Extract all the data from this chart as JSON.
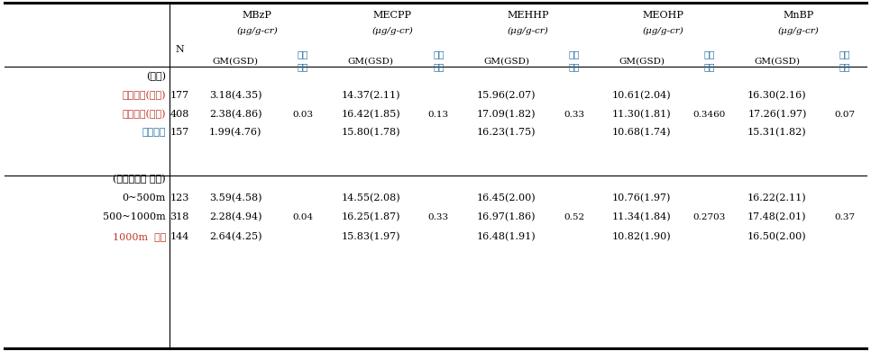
{
  "col_headers_line1": [
    "MBzP",
    "MECPP",
    "MEHHP",
    "MEOHP",
    "MnBP"
  ],
  "col_headers_line2": [
    "(μg/g-cr)",
    "(μg/g-cr)",
    "(μg/g-cr)",
    "(μg/g-cr)",
    "(μg/g-cr)"
  ],
  "row_groups": [
    {
      "group_label": "(지역)",
      "rows": [
        {
          "label": "노출지역(시흥)",
          "label_color": "#c0392b",
          "N": "177",
          "gm": [
            "3.18(4.35)",
            "14.37(2.11)",
            "15.96(2.07)",
            "10.61(2.04)",
            "16.30(2.16)"
          ],
          "sig": [
            "",
            "",
            "",
            "",
            ""
          ]
        },
        {
          "label": "노출지역(안산)",
          "label_color": "#c0392b",
          "N": "408",
          "gm": [
            "2.38(4.86)",
            "16.42(1.85)",
            "17.09(1.82)",
            "11.30(1.81)",
            "17.26(1.97)"
          ],
          "sig": [
            "0.03",
            "0.13",
            "0.33",
            "0.3460",
            "0.07"
          ]
        },
        {
          "label": "대조지역",
          "label_color": "#2471a3",
          "N": "157",
          "gm": [
            "1.99(4.76)",
            "15.80(1.78)",
            "16.23(1.75)",
            "10.68(1.74)",
            "15.31(1.82)"
          ],
          "sig": [
            "",
            "",
            "",
            "",
            ""
          ]
        }
      ]
    },
    {
      "group_label": "(산단주거지 거리)",
      "rows": [
        {
          "label": "0~500m",
          "label_color": "#000000",
          "N": "123",
          "gm": [
            "3.59(4.58)",
            "14.55(2.08)",
            "16.45(2.00)",
            "10.76(1.97)",
            "16.22(2.11)"
          ],
          "sig": [
            "",
            "",
            "",
            "",
            ""
          ]
        },
        {
          "label": "500~1000m",
          "label_color": "#000000",
          "N": "318",
          "gm": [
            "2.28(4.94)",
            "16.25(1.87)",
            "16.97(1.86)",
            "11.34(1.84)",
            "17.48(2.01)"
          ],
          "sig": [
            "0.04",
            "0.33",
            "0.52",
            "0.2703",
            "0.37"
          ]
        },
        {
          "label": "1000m  이상",
          "label_color": "#c0392b",
          "N": "144",
          "gm": [
            "2.64(4.25)",
            "15.83(1.97)",
            "16.48(1.91)",
            "10.82(1.90)",
            "16.50(2.00)"
          ],
          "sig": [
            "",
            "",
            "",
            "",
            ""
          ]
        }
      ]
    }
  ],
  "text_color_red": "#c0392b",
  "text_color_blue": "#2471a3",
  "bg_color": "#ffffff"
}
